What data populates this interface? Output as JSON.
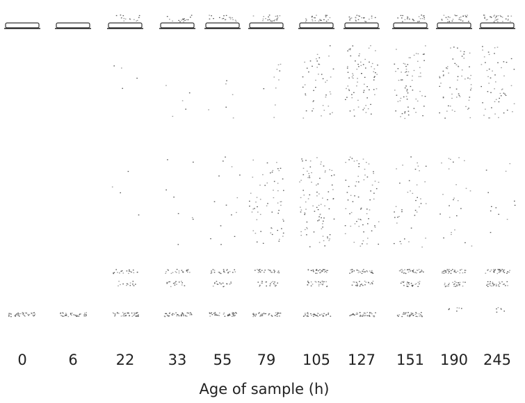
{
  "lanes": [
    "0",
    "6",
    "22",
    "33",
    "55",
    "79",
    "105",
    "127",
    "151",
    "190",
    "245"
  ],
  "xlabel": "Age of sample (h)"
}
